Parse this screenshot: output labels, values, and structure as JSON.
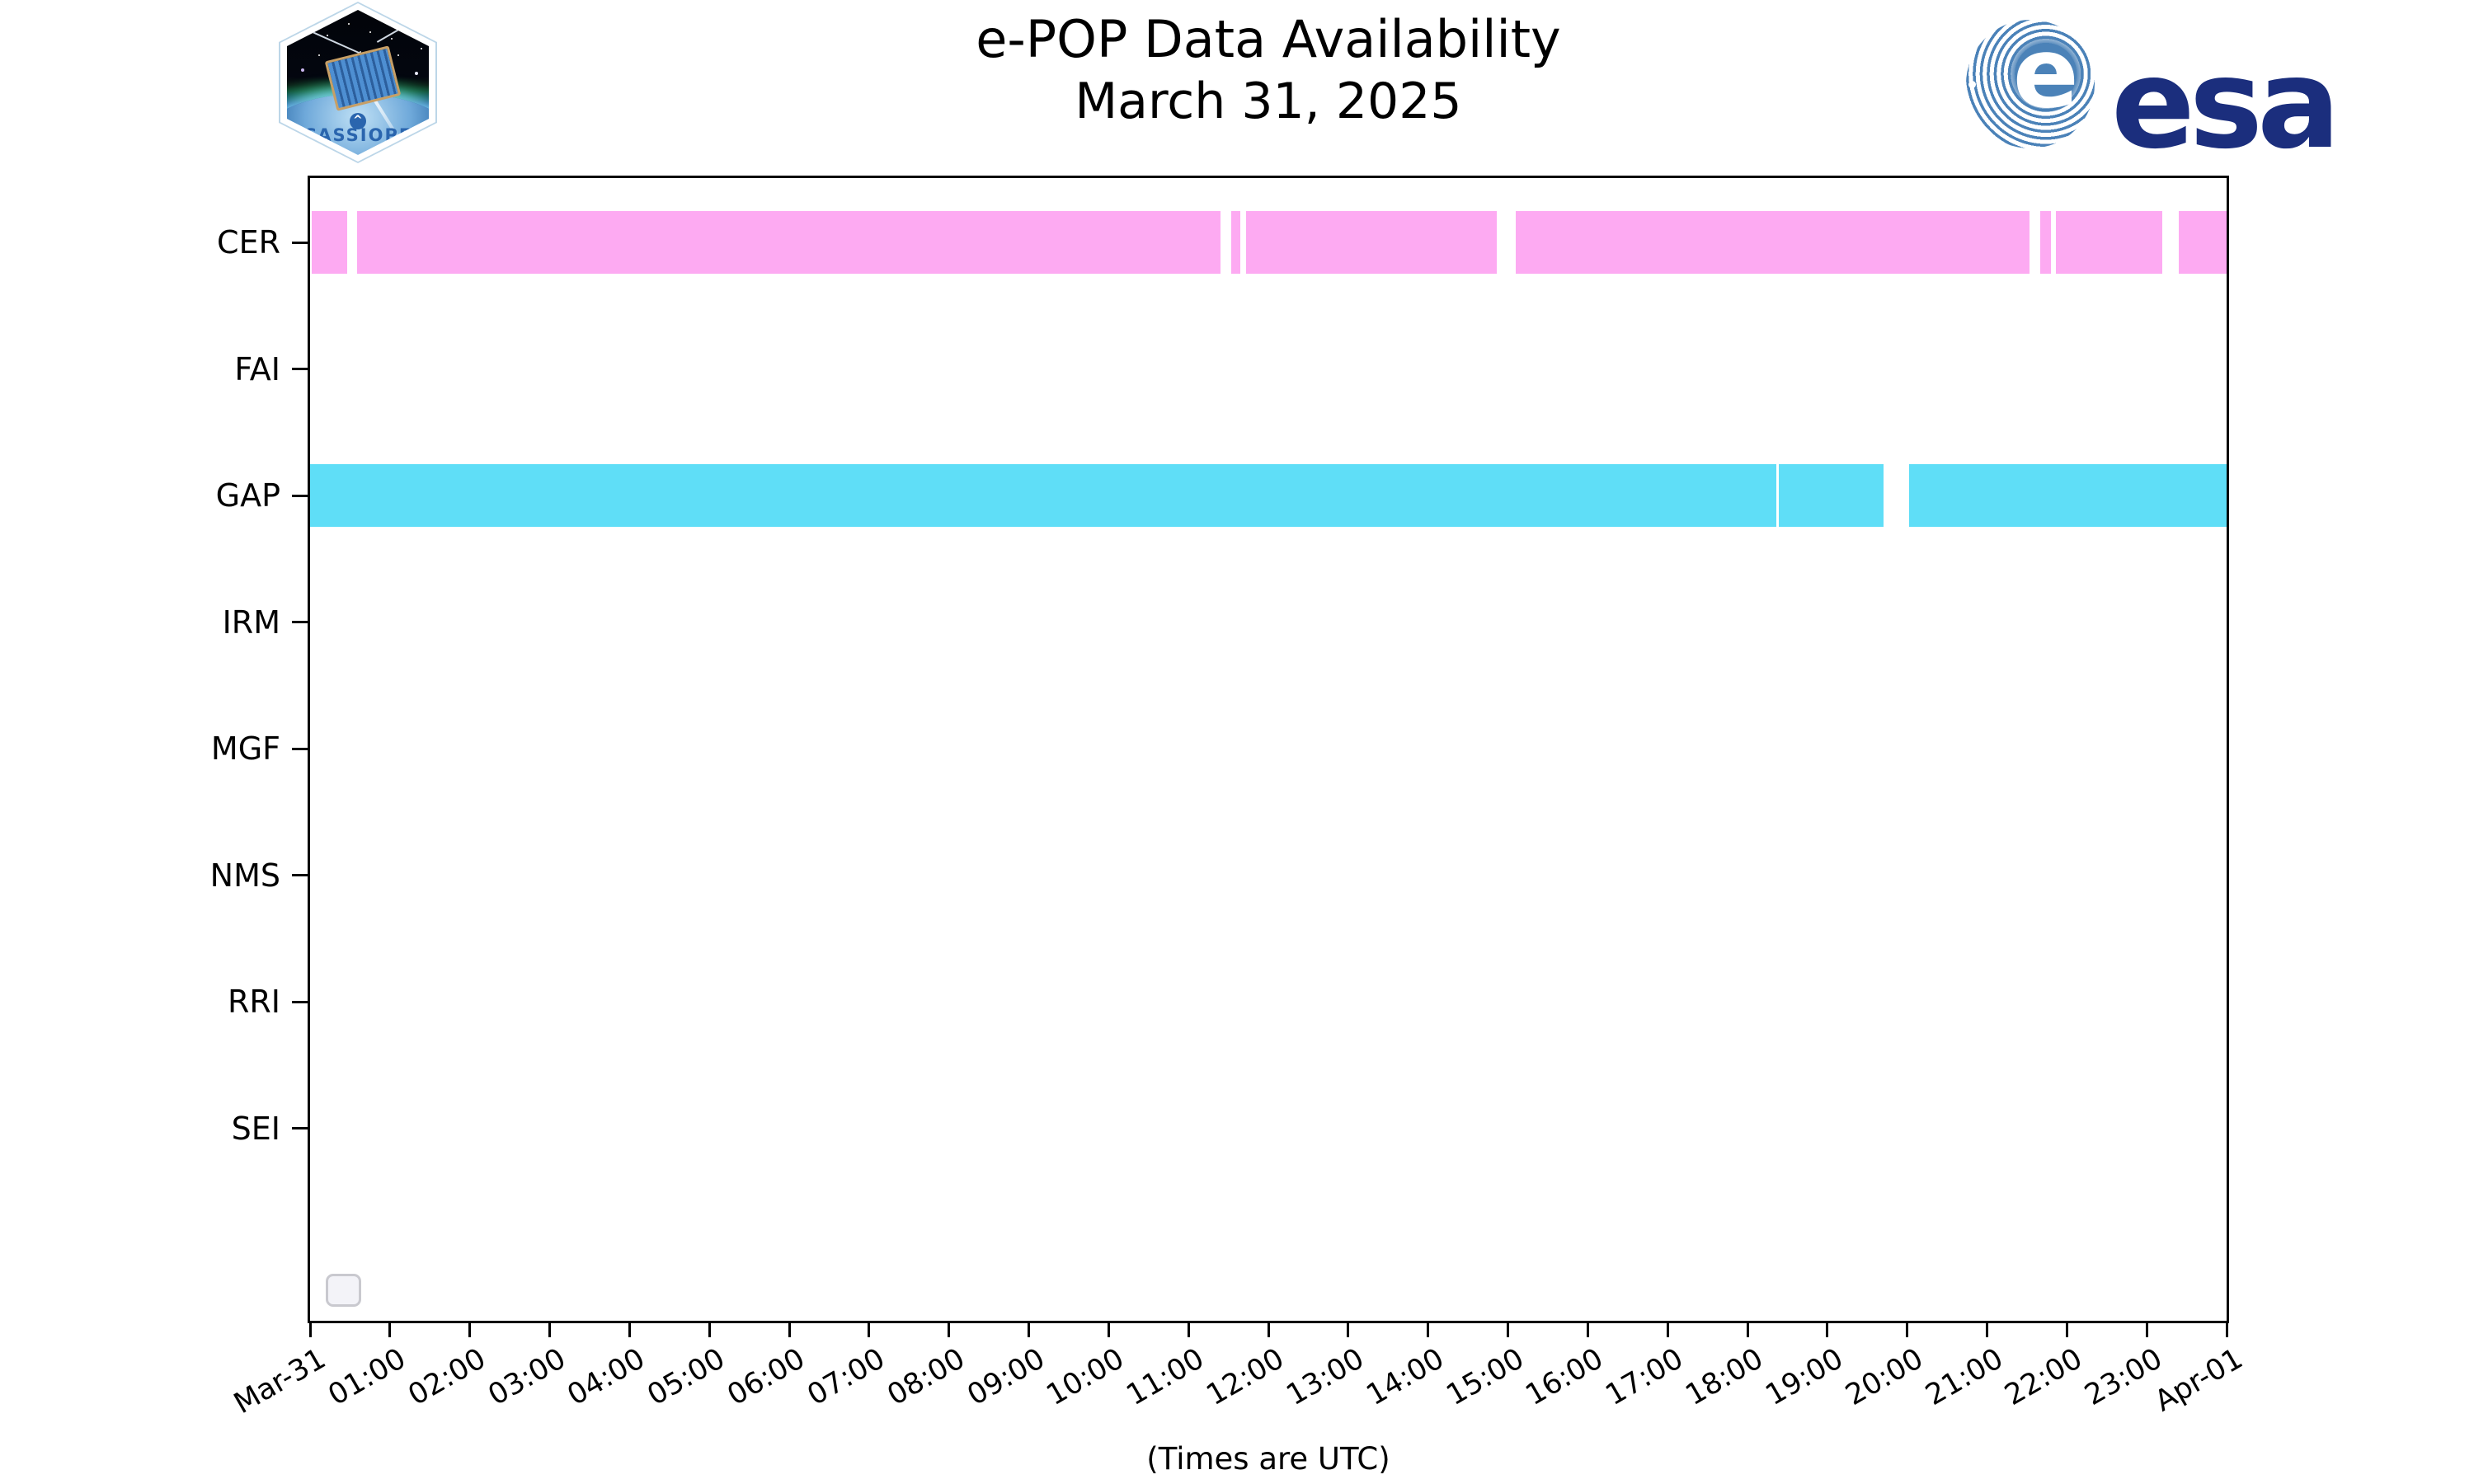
{
  "title": {
    "line1": "e-POP Data Availability",
    "line2": "March 31, 2025"
  },
  "caption": "(Times are UTC)",
  "logos": {
    "cassiope": {
      "label": "CASSIOPE"
    },
    "esa": {
      "word": "esa",
      "ball_letter": "e"
    }
  },
  "colors": {
    "cer_pink": "#fdaaf2",
    "gap_cyan": "#5fdef7",
    "axis": "#000000",
    "esa_navy": "#1b2e7d",
    "esa_ball_blue": "#4b82b8",
    "cassiope_blue": "#2a65ae",
    "legend_border": "#c9c9cf",
    "legend_fill": "#f3f3f8"
  },
  "chart_data": {
    "type": "timeline-availability",
    "title": "e-POP Data Availability March 31, 2025",
    "xlabel": "(Times are UTC)",
    "x_axis": {
      "hours_span": 24,
      "tick_labels": [
        "Mar-31",
        "01:00",
        "02:00",
        "03:00",
        "04:00",
        "05:00",
        "06:00",
        "07:00",
        "08:00",
        "09:00",
        "10:00",
        "11:00",
        "12:00",
        "13:00",
        "14:00",
        "15:00",
        "16:00",
        "17:00",
        "18:00",
        "19:00",
        "20:00",
        "21:00",
        "22:00",
        "23:00",
        "Apr-01"
      ],
      "tick_label_rotation_deg": 30
    },
    "rows": [
      {
        "label": "CER",
        "color": "#fdaaf2",
        "segments_hours": [
          [
            0.02,
            0.46
          ],
          [
            0.59,
            11.4
          ],
          [
            11.54,
            11.65
          ],
          [
            11.72,
            14.86
          ],
          [
            15.1,
            21.53
          ],
          [
            21.67,
            21.8
          ],
          [
            21.86,
            23.19
          ],
          [
            23.4,
            24.0
          ]
        ]
      },
      {
        "label": "FAI",
        "color": "#fdaaf2",
        "segments_hours": []
      },
      {
        "label": "GAP",
        "color": "#5fdef7",
        "segments_hours": [
          [
            0.0,
            18.36
          ],
          [
            18.39,
            19.7
          ],
          [
            20.02,
            24.0
          ]
        ]
      },
      {
        "label": "IRM",
        "color": "#5fdef7",
        "segments_hours": []
      },
      {
        "label": "MGF",
        "color": "#fdaaf2",
        "segments_hours": []
      },
      {
        "label": "NMS",
        "color": "#fdaaf2",
        "segments_hours": []
      },
      {
        "label": "RRI",
        "color": "#5fdef7",
        "segments_hours": []
      },
      {
        "label": "SEI",
        "color": "#fdaaf2",
        "segments_hours": []
      }
    ],
    "legend": {
      "visible": true,
      "entries": []
    },
    "grid": false
  }
}
